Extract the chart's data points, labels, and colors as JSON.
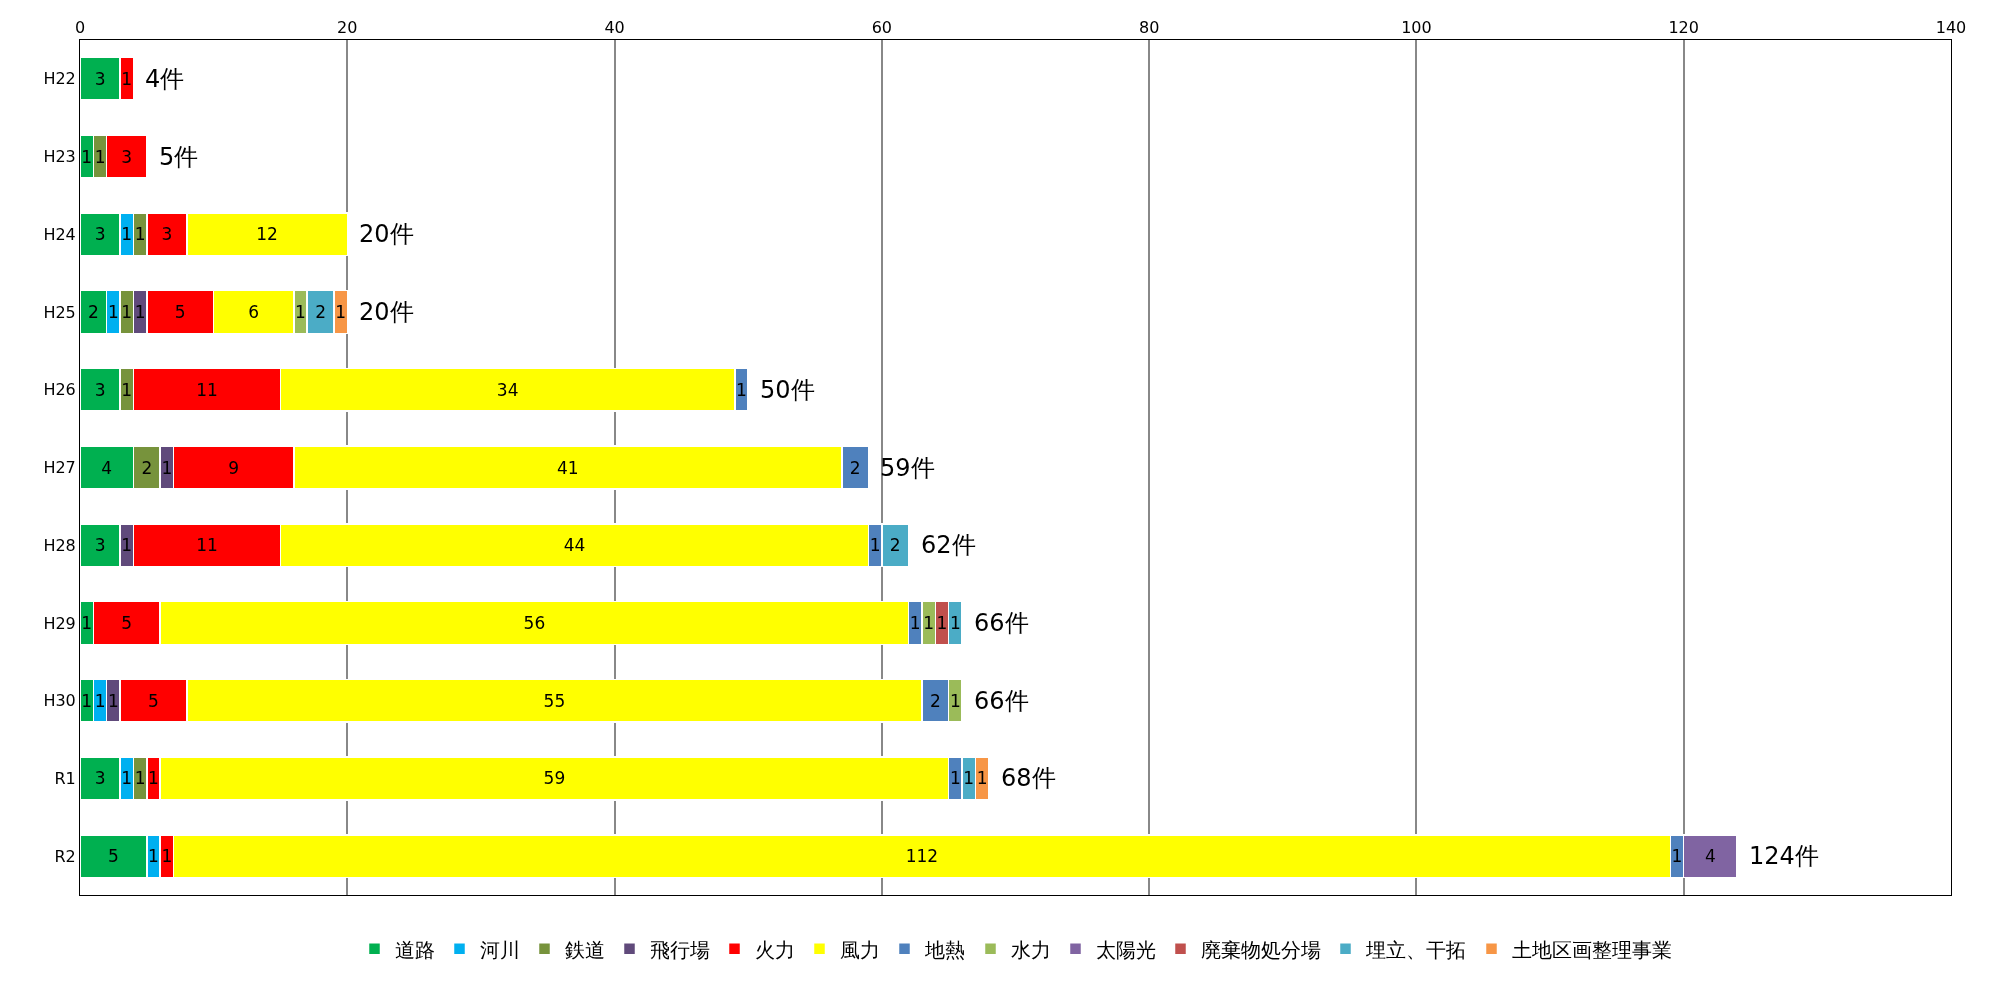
{
  "chart_data": {
    "type": "bar",
    "orientation": "horizontal",
    "stacked": true,
    "data_labels": true,
    "categories": [
      "H22",
      "H23",
      "H24",
      "H25",
      "H26",
      "H27",
      "H28",
      "H29",
      "H30",
      "R1",
      "R2"
    ],
    "series": [
      {
        "name": "道路",
        "color": "#00b050",
        "values": [
          3,
          1,
          3,
          2,
          3,
          4,
          3,
          1,
          1,
          3,
          5
        ]
      },
      {
        "name": "河川",
        "color": "#00b0f0",
        "values": [
          null,
          null,
          1,
          1,
          null,
          null,
          null,
          null,
          1,
          1,
          1
        ]
      },
      {
        "name": "鉄道",
        "color": "#77933c",
        "values": [
          null,
          1,
          1,
          1,
          1,
          2,
          null,
          null,
          null,
          1,
          null
        ]
      },
      {
        "name": "飛行場",
        "color": "#604a7b",
        "values": [
          null,
          null,
          null,
          1,
          null,
          1,
          1,
          null,
          1,
          null,
          null
        ]
      },
      {
        "name": "火力",
        "color": "#ff0000",
        "values": [
          1,
          3,
          3,
          5,
          11,
          9,
          11,
          5,
          5,
          1,
          1
        ]
      },
      {
        "name": "風力",
        "color": "#ffff00",
        "values": [
          null,
          null,
          12,
          6,
          34,
          41,
          44,
          56,
          55,
          59,
          112
        ]
      },
      {
        "name": "地熱",
        "color": "#4f81bd",
        "values": [
          null,
          null,
          null,
          null,
          1,
          2,
          1,
          1,
          2,
          1,
          1
        ]
      },
      {
        "name": "水力",
        "color": "#9bbb59",
        "values": [
          null,
          null,
          null,
          1,
          null,
          null,
          null,
          1,
          1,
          null,
          null
        ]
      },
      {
        "name": "太陽光",
        "color": "#8064a2",
        "values": [
          null,
          null,
          null,
          null,
          null,
          null,
          null,
          null,
          null,
          null,
          4
        ]
      },
      {
        "name": "廃棄物処分場",
        "color": "#c0504d",
        "values": [
          null,
          null,
          null,
          null,
          null,
          null,
          null,
          1,
          null,
          null,
          null
        ]
      },
      {
        "name": "埋立、干拓",
        "color": "#4bacc6",
        "values": [
          null,
          null,
          null,
          2,
          null,
          null,
          2,
          1,
          null,
          1,
          null
        ]
      },
      {
        "name": "土地区画整理事業",
        "color": "#f79646",
        "values": [
          null,
          null,
          null,
          1,
          null,
          null,
          null,
          null,
          null,
          1,
          null
        ]
      }
    ],
    "totals": [
      "4件",
      "5件",
      "20件",
      "20件",
      "50件",
      "59件",
      "62件",
      "66件",
      "66件",
      "68件",
      "124件"
    ],
    "xlim": [
      0,
      140
    ],
    "xticks": [
      0,
      20,
      40,
      60,
      80,
      100,
      120,
      140
    ],
    "grid": "x",
    "legend": "bottom"
  }
}
